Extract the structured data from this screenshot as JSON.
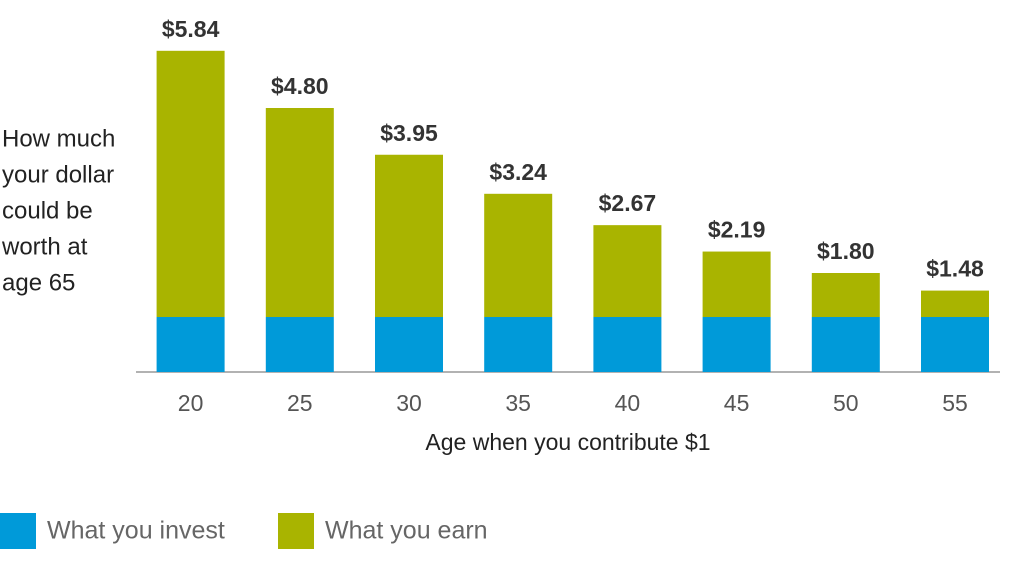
{
  "chart_data": {
    "type": "stacked-bar",
    "x_label": "Age when you contribute $1",
    "y_label": [
      "How much",
      "your dollar",
      "could be",
      "worth at",
      "age 65"
    ],
    "categories": [
      "20",
      "25",
      "30",
      "35",
      "40",
      "45",
      "50",
      "55"
    ],
    "series": [
      {
        "name": "What you invest",
        "color": "#009ad9",
        "values": [
          1,
          1,
          1,
          1,
          1,
          1,
          1,
          1
        ]
      },
      {
        "name": "What you earn",
        "color": "#a9b400",
        "values": [
          4.84,
          3.8,
          2.95,
          2.24,
          1.67,
          1.19,
          0.8,
          0.48
        ]
      }
    ],
    "totals": {
      "values": [
        5.84,
        4.8,
        3.95,
        3.24,
        2.67,
        2.19,
        1.8,
        1.48
      ],
      "value_labels": [
        "$5.84",
        "$4.80",
        "$3.95",
        "$3.24",
        "$2.67",
        "$2.19",
        "$1.80",
        "$1.48"
      ]
    }
  }
}
